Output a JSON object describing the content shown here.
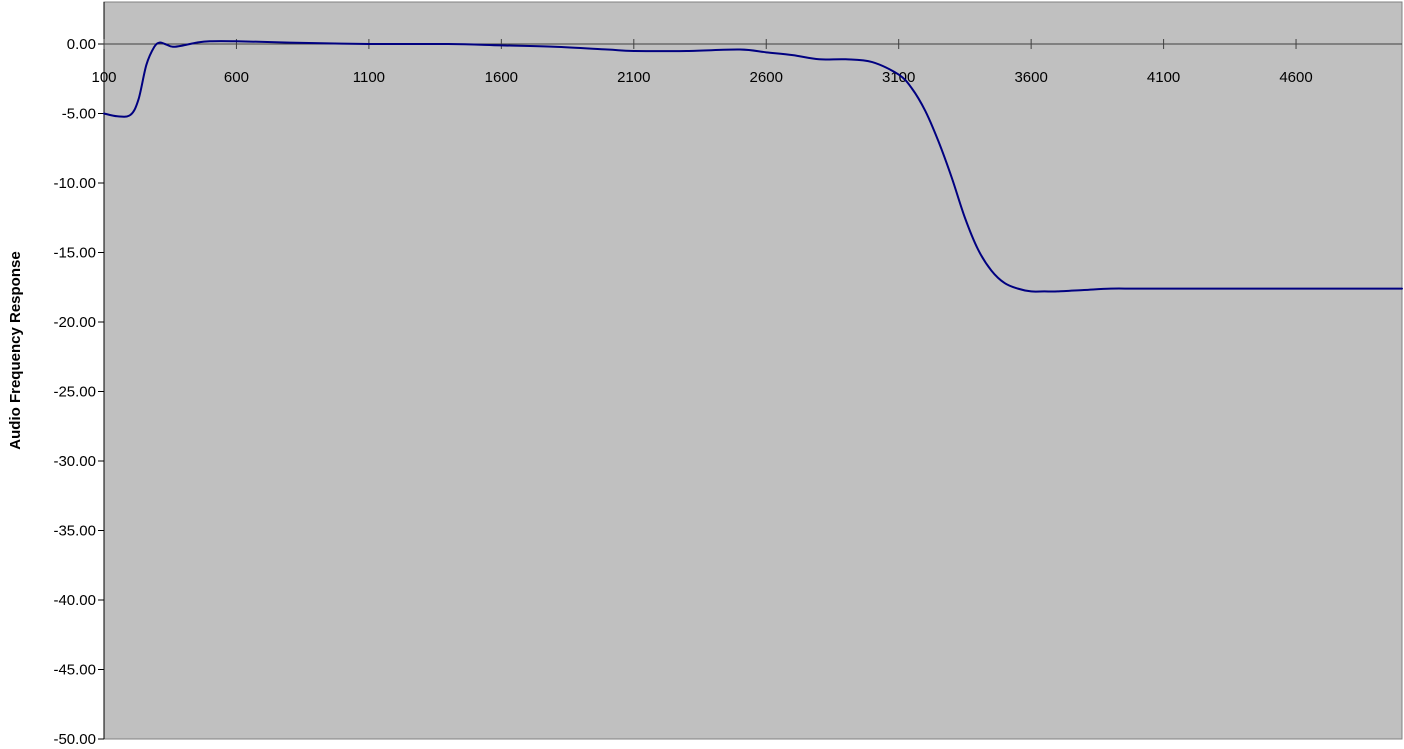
{
  "chart_data": {
    "type": "line",
    "title": "",
    "xlabel": "",
    "ylabel": "Audio Frequency Response",
    "xlim": [
      100,
      5000
    ],
    "ylim": [
      -50,
      0
    ],
    "x_ticks": [
      100,
      600,
      1100,
      1600,
      2100,
      2600,
      3100,
      3600,
      4100,
      4600
    ],
    "x_tick_labels": [
      "100",
      "600",
      "1100",
      "1600",
      "2100",
      "2600",
      "3100",
      "3600",
      "4100",
      "4600"
    ],
    "y_ticks": [
      0,
      -5,
      -10,
      -15,
      -20,
      -25,
      -30,
      -35,
      -40,
      -45,
      -50
    ],
    "y_tick_labels": [
      "0.00",
      "-5.00",
      "-10.00",
      "-15.00",
      "-20.00",
      "-25.00",
      "-30.00",
      "-35.00",
      "-40.00",
      "-45.00",
      "-50.00"
    ],
    "grid": false,
    "legend": "none",
    "plot_background": "#c0c0c0",
    "series": [
      {
        "color": "#000080",
        "x": [
          100,
          150,
          200,
          230,
          260,
          290,
          310,
          330,
          360,
          400,
          450,
          500,
          600,
          800,
          1100,
          1400,
          1600,
          1800,
          2000,
          2100,
          2300,
          2500,
          2600,
          2700,
          2800,
          2900,
          3000,
          3100,
          3150,
          3200,
          3250,
          3300,
          3350,
          3400,
          3450,
          3500,
          3550,
          3600,
          3650,
          3700,
          3800,
          3900,
          4000,
          4200,
          4400,
          4600,
          4800,
          5000
        ],
        "y": [
          -5.0,
          -5.2,
          -5.1,
          -4.0,
          -1.5,
          -0.2,
          0.1,
          0.0,
          -0.2,
          -0.1,
          0.1,
          0.2,
          0.2,
          0.1,
          0.0,
          0.0,
          -0.1,
          -0.2,
          -0.4,
          -0.5,
          -0.5,
          -0.4,
          -0.6,
          -0.8,
          -1.1,
          -1.1,
          -1.3,
          -2.2,
          -3.2,
          -4.8,
          -7.0,
          -9.6,
          -12.5,
          -14.8,
          -16.3,
          -17.2,
          -17.6,
          -17.8,
          -17.8,
          -17.8,
          -17.7,
          -17.6,
          -17.6,
          -17.6,
          -17.6,
          -17.6,
          -17.6,
          -17.6
        ]
      }
    ]
  }
}
